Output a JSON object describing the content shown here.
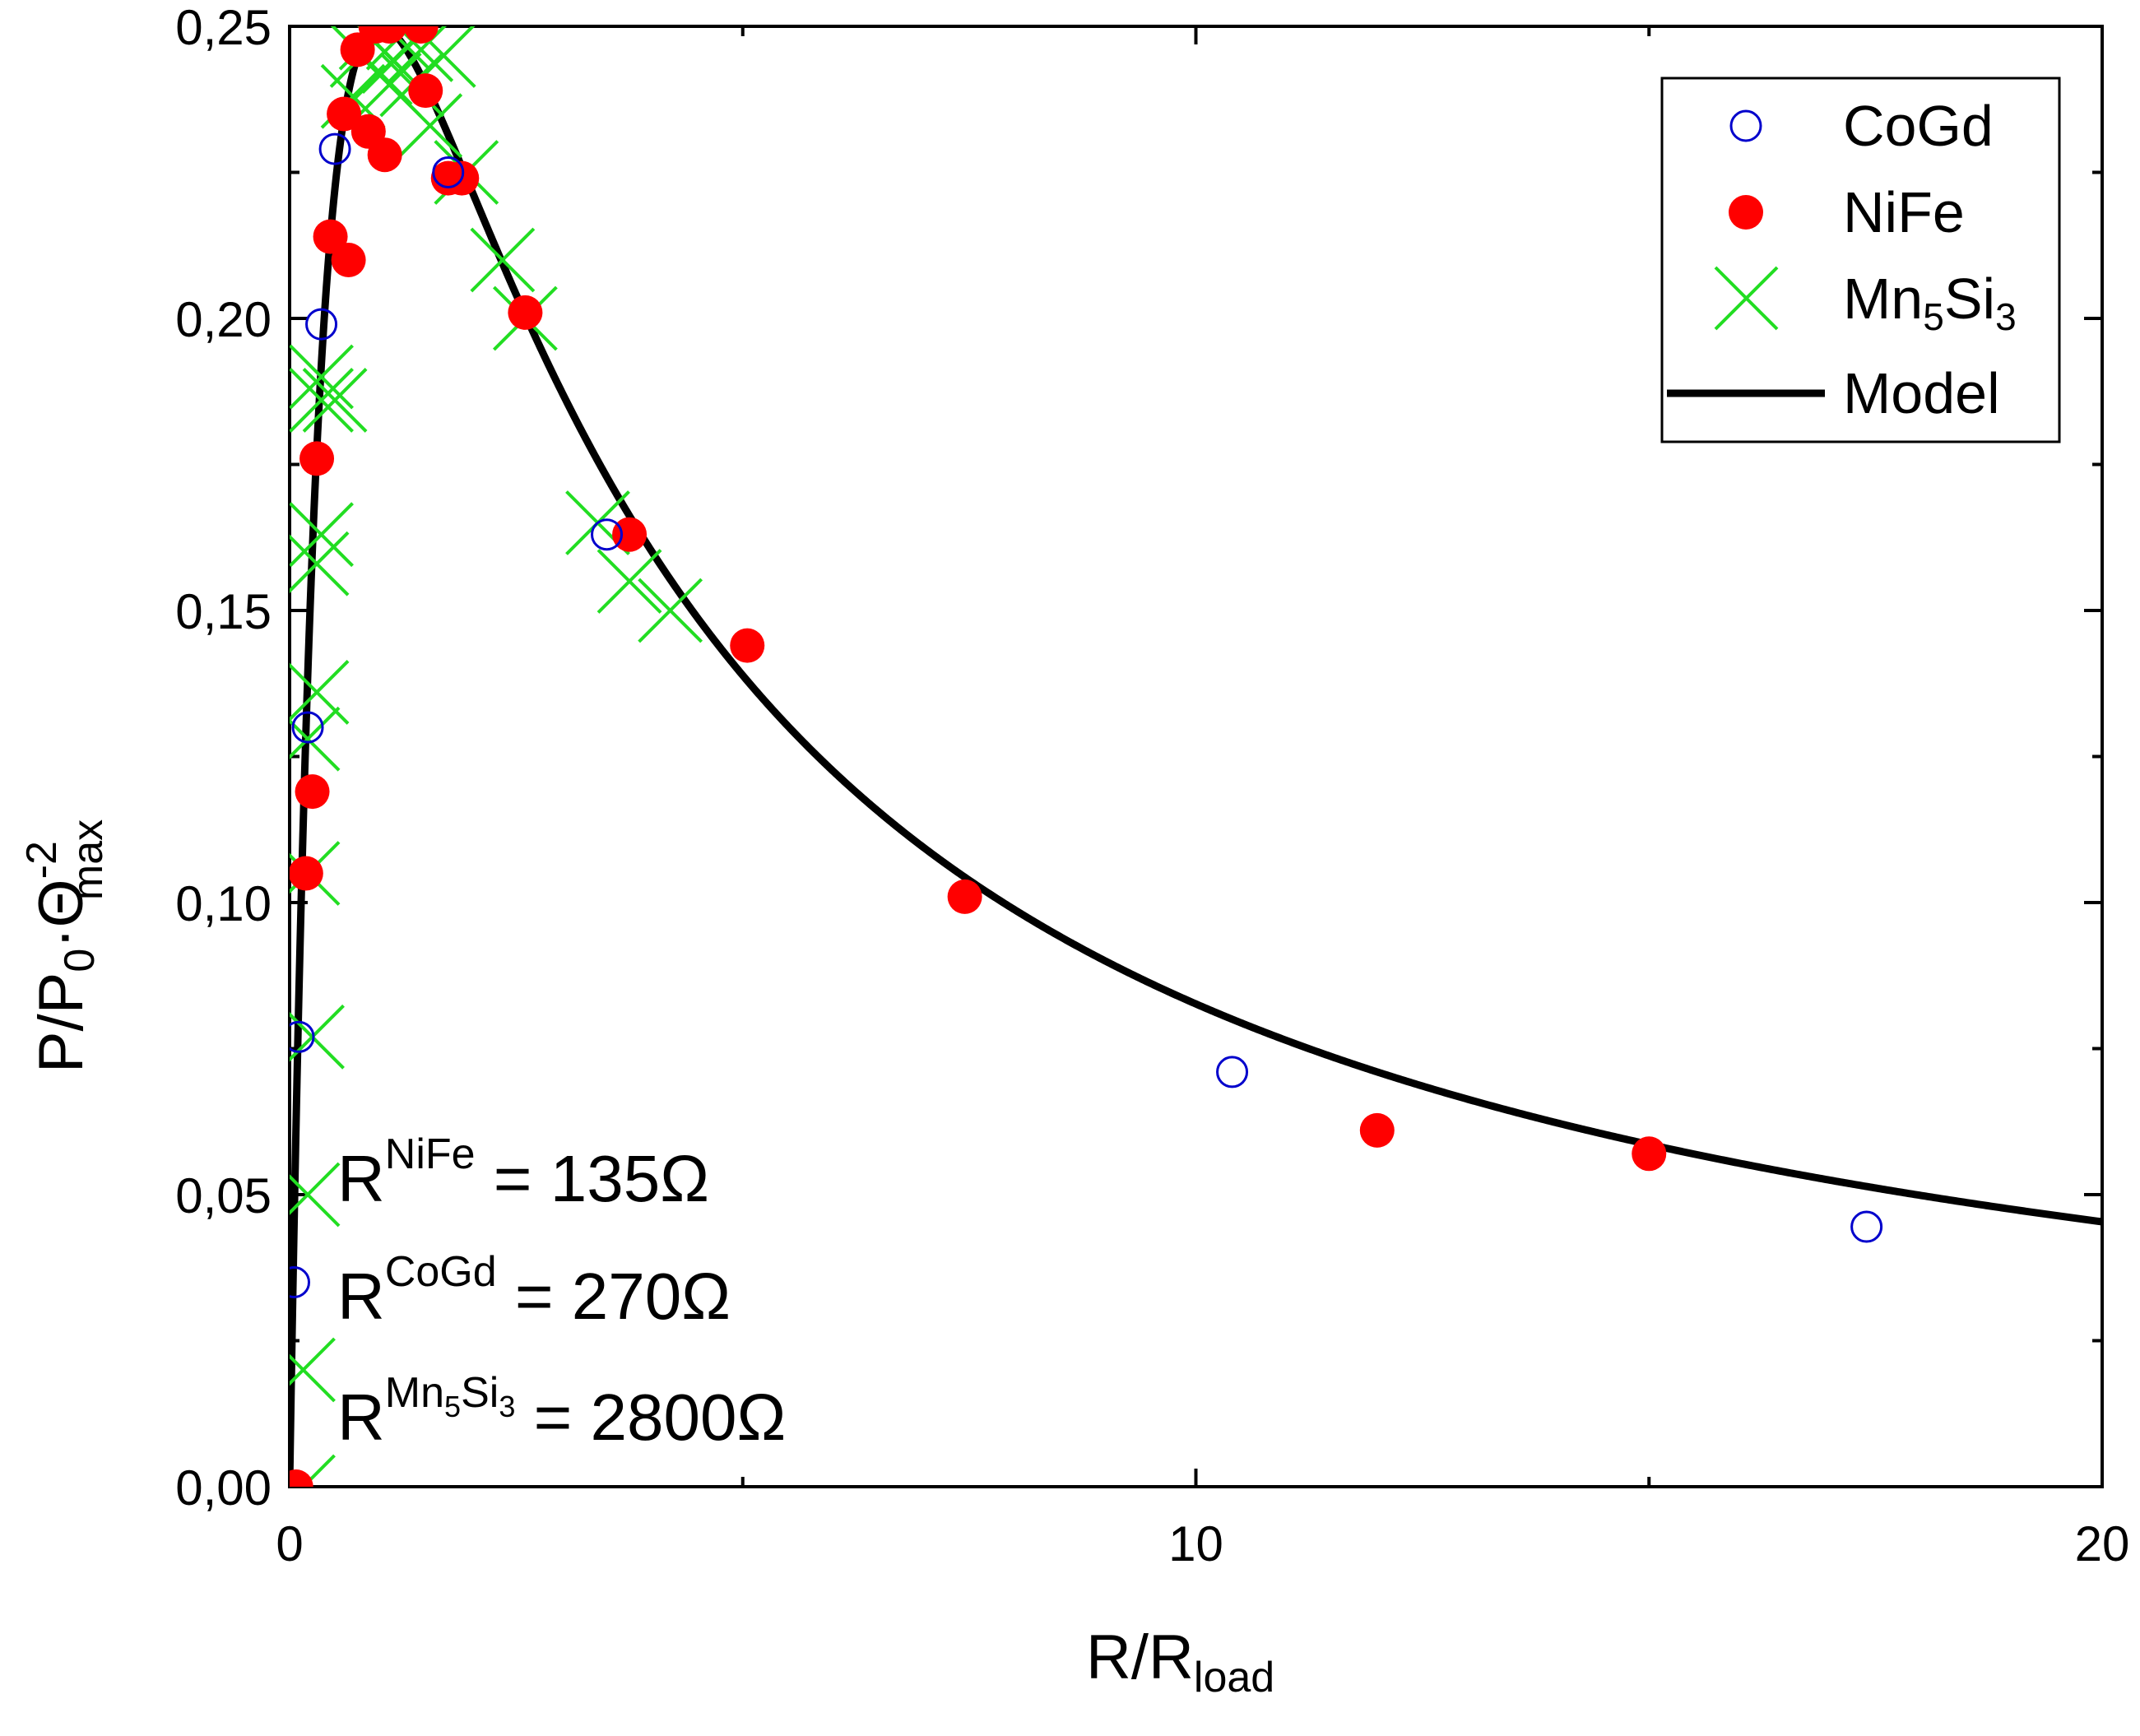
{
  "chart_data": {
    "type": "scatter",
    "title": "",
    "xlabel": {
      "main": "R/R",
      "sub": "load"
    },
    "ylabel": {
      "p1": "P/P",
      "sub0": "0",
      "dot": "·",
      "theta": "Θ",
      "sup": "-2",
      "subMax": "max"
    },
    "xlim": [
      0,
      20
    ],
    "ylim": [
      0,
      0.25
    ],
    "x_ticks": [
      0,
      10,
      20
    ],
    "x_tick_labels": [
      "0",
      "10",
      "20"
    ],
    "y_ticks": [
      0,
      0.05,
      0.1,
      0.15,
      0.2,
      0.25
    ],
    "y_tick_labels": [
      "0,00",
      "0,05",
      "0,10",
      "0,15",
      "0,20",
      "0,25"
    ],
    "legend": {
      "position": "top-right",
      "entries": [
        {
          "label": "CoGd",
          "marker": "open-circle",
          "color": "#0000cc"
        },
        {
          "label": "NiFe",
          "marker": "filled-circle",
          "color": "#ff0000"
        },
        {
          "label_main": "Mn",
          "label_sub1": "5",
          "label_mid": "Si",
          "label_sub2": "3",
          "marker": "cross",
          "color": "#22dd22"
        },
        {
          "label": "Model",
          "marker": "line",
          "color": "#000000"
        }
      ]
    },
    "annotations": [
      {
        "base": "R",
        "sup": "NiFe",
        "value": " = 135Ω"
      },
      {
        "base": "R",
        "sup": "CoGd",
        "value": " = 270Ω"
      },
      {
        "base": "R",
        "sup_main1": "Mn",
        "sup_sub1": "5",
        "sup_main2": "Si",
        "sup_sub2": "3",
        "value": " = 2800Ω"
      }
    ],
    "series": [
      {
        "name": "CoGd",
        "marker": "open-circle",
        "color": "#0000cc",
        "points": [
          [
            0.05,
            0.035
          ],
          [
            0.1,
            0.077
          ],
          [
            0.2,
            0.13
          ],
          [
            0.35,
            0.199
          ],
          [
            0.5,
            0.229
          ],
          [
            1.75,
            0.225
          ],
          [
            3.5,
            0.163
          ],
          [
            10.4,
            0.071
          ],
          [
            17.4,
            0.0445
          ]
        ]
      },
      {
        "name": "NiFe",
        "marker": "filled-circle",
        "color": "#ff0000",
        "points": [
          [
            0.07,
            0.0
          ],
          [
            0.18,
            0.105
          ],
          [
            0.25,
            0.119
          ],
          [
            0.3,
            0.176
          ],
          [
            0.45,
            0.214
          ],
          [
            0.6,
            0.235
          ],
          [
            0.65,
            0.21
          ],
          [
            0.75,
            0.246
          ],
          [
            0.87,
            0.232
          ],
          [
            0.95,
            0.25
          ],
          [
            1.05,
            0.228
          ],
          [
            1.1,
            0.25
          ],
          [
            1.45,
            0.25
          ],
          [
            1.5,
            0.239
          ],
          [
            1.75,
            0.224
          ],
          [
            1.9,
            0.224
          ],
          [
            2.6,
            0.201
          ],
          [
            3.75,
            0.163
          ],
          [
            5.05,
            0.144
          ],
          [
            7.45,
            0.101
          ],
          [
            12.0,
            0.061
          ],
          [
            15.0,
            0.057
          ]
        ]
      },
      {
        "name": "Mn5Si3",
        "marker": "cross",
        "color": "#22dd22",
        "points": [
          [
            0.15,
            0.0
          ],
          [
            0.15,
            0.02
          ],
          [
            0.2,
            0.05
          ],
          [
            0.25,
            0.077
          ],
          [
            0.2,
            0.105
          ],
          [
            0.2,
            0.128
          ],
          [
            0.3,
            0.136
          ],
          [
            0.3,
            0.158
          ],
          [
            0.35,
            0.163
          ],
          [
            0.35,
            0.186
          ],
          [
            0.5,
            0.186
          ],
          [
            0.35,
            0.19
          ],
          [
            0.7,
            0.238
          ],
          [
            0.8,
            0.245
          ],
          [
            0.9,
            0.248
          ],
          [
            1.0,
            0.242
          ],
          [
            1.1,
            0.24
          ],
          [
            1.15,
            0.244
          ],
          [
            1.2,
            0.248
          ],
          [
            1.35,
            0.24
          ],
          [
            1.45,
            0.246
          ],
          [
            1.55,
            0.233
          ],
          [
            1.7,
            0.245
          ],
          [
            1.95,
            0.225
          ],
          [
            2.35,
            0.21
          ],
          [
            2.6,
            0.2
          ],
          [
            3.4,
            0.165
          ],
          [
            3.75,
            0.155
          ],
          [
            4.2,
            0.15
          ]
        ]
      },
      {
        "name": "Model",
        "marker": "line",
        "color": "#000000",
        "formula": "y = x / (1 + x)^2",
        "x_range": [
          0,
          20
        ]
      }
    ]
  }
}
